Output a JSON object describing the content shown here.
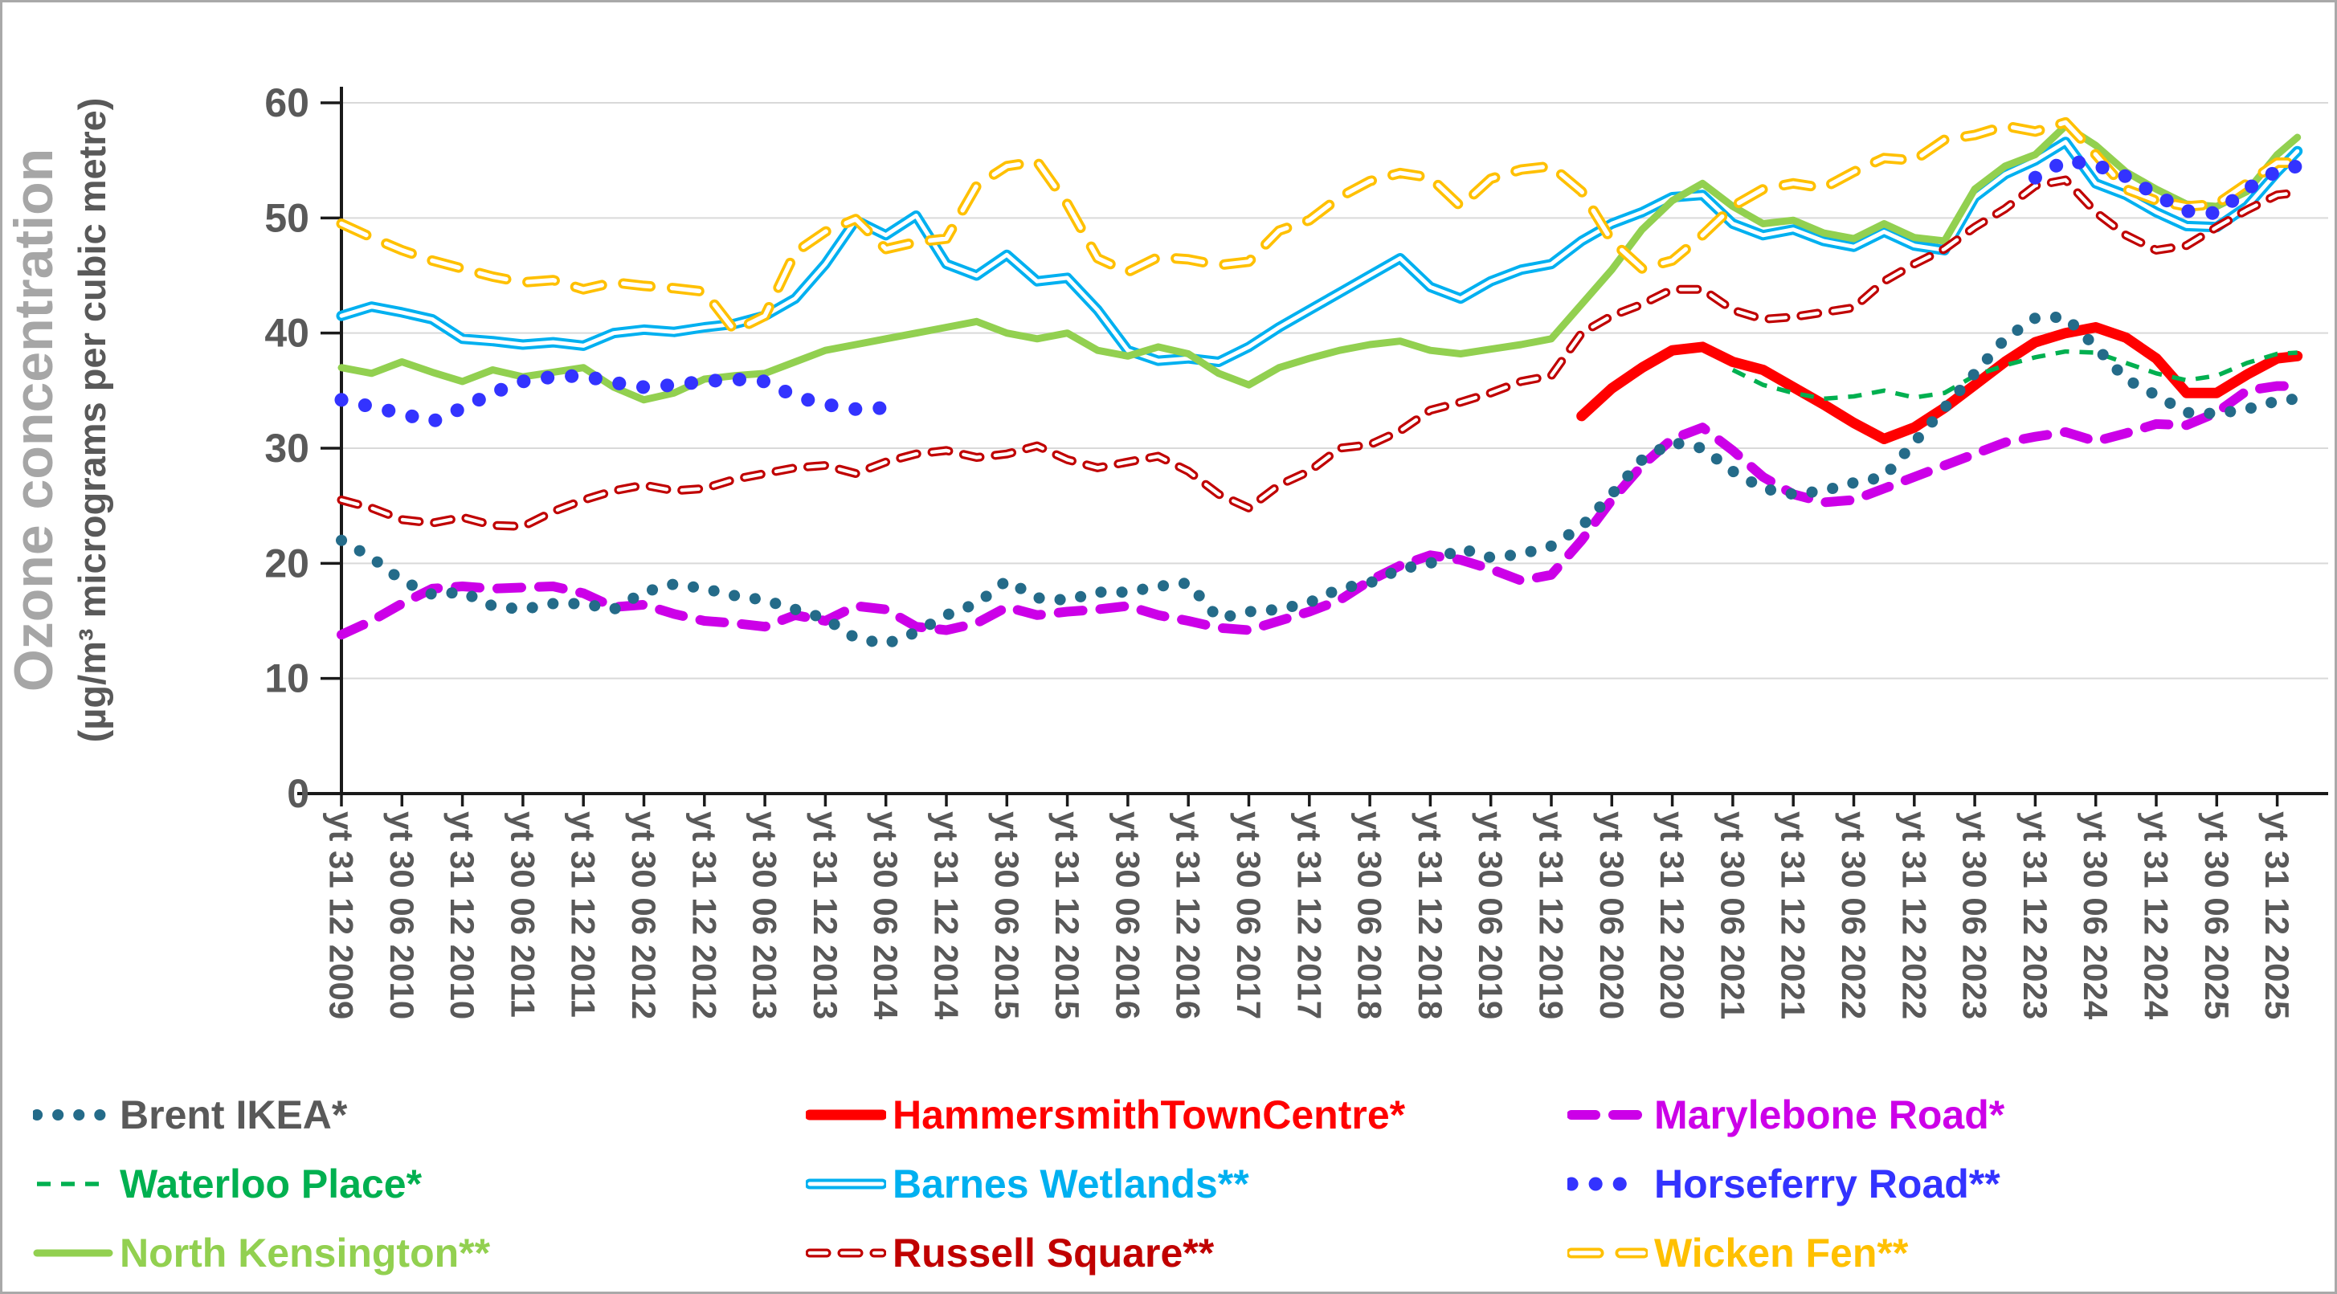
{
  "y_axis": {
    "title_line1": "Ozone concentration",
    "title_line2": "(µg/m³ micrograms per cubic metre)",
    "tick_labels": [
      "0",
      "10",
      "20",
      "30",
      "40",
      "50",
      "60"
    ],
    "range": [
      0,
      60
    ]
  },
  "x_axis": {
    "tick_labels": [
      "yt 31 12 2009",
      "yt 30 06 2010",
      "yt 31 12 2010",
      "yt 30 06 2011",
      "yt 31 12 2011",
      "yt 30 06 2012",
      "yt 31 12 2012",
      "yt 30 06 2013",
      "yt 31 12 2013",
      "yt 30 06 2014",
      "yt 31 12 2014",
      "yt 30 06 2015",
      "yt 31 12 2015",
      "yt 30 06 2016",
      "yt 31 12 2016",
      "yt 30 06 2017",
      "yt 31 12 2017",
      "yt 30 06 2018",
      "yt 31 12 2018",
      "yt 30 06 2019",
      "yt 31 12 2019",
      "yt 30 06 2020",
      "yt 31 12 2020",
      "yt 30 06 2021",
      "yt 31 12 2021",
      "yt 30 06 2022",
      "yt 31 12 2022",
      "yt 30 06 2023",
      "yt 31 12 2023",
      "yt 30 06 2024",
      "yt 31 12 2024",
      "yt 30 06 2025",
      "yt 31 12 2025"
    ]
  },
  "chart_data": {
    "type": "line",
    "title": "",
    "xlabel": "",
    "ylabel": "Ozone concentration (µg/m³ micrograms per cubic metre)",
    "ylim": [
      0,
      60
    ],
    "grid": "horizontal",
    "legend_position": "bottom",
    "x_unit": "months since Dec 2009 (labels are half-yearly 'year to' dates)",
    "x": [
      0,
      3,
      6,
      9,
      12,
      15,
      18,
      21,
      24,
      27,
      30,
      33,
      36,
      39,
      42,
      45,
      48,
      51,
      54,
      57,
      60,
      63,
      66,
      69,
      72,
      75,
      78,
      81,
      84,
      87,
      90,
      93,
      96,
      99,
      102,
      105,
      108,
      111,
      114,
      117,
      120,
      123,
      126,
      129,
      132,
      135,
      138,
      141,
      144,
      147,
      150,
      153,
      156,
      159,
      162,
      165,
      168,
      171,
      174,
      177,
      180,
      183,
      186,
      189,
      192,
      194
    ],
    "series": [
      {
        "key": "barnes-wetlands",
        "name": "Barnes Wetlands**",
        "color": "#00B0F0",
        "style": "double",
        "values": [
          41.5,
          42.3,
          41.8,
          41.2,
          39.5,
          39.3,
          39.0,
          39.2,
          38.9,
          40.0,
          40.3,
          40.1,
          40.5,
          40.8,
          41.5,
          43.0,
          46.0,
          49.8,
          48.5,
          50.2,
          46.0,
          45.0,
          46.8,
          44.5,
          44.8,
          42.0,
          38.5,
          37.6,
          37.8,
          37.5,
          38.8,
          40.5,
          42.0,
          43.5,
          45.0,
          46.5,
          44.0,
          43.0,
          44.5,
          45.5,
          46.0,
          48.0,
          49.5,
          50.5,
          51.8,
          52.0,
          49.5,
          48.5,
          49.0,
          48.0,
          47.5,
          48.8,
          47.6,
          47.2,
          51.8,
          53.8,
          55.0,
          56.6,
          53.0,
          52.0,
          50.5,
          49.3,
          49.2,
          51.0,
          54.0,
          55.8
        ]
      },
      {
        "key": "north-kensington",
        "name": "North Kensington**",
        "color": "#92D050",
        "style": "solid",
        "values": [
          37.0,
          36.5,
          37.5,
          36.6,
          35.8,
          36.8,
          36.2,
          36.6,
          37.0,
          35.3,
          34.2,
          34.8,
          36.0,
          36.3,
          36.5,
          37.5,
          38.5,
          39.0,
          39.5,
          40.0,
          40.5,
          41.0,
          40.0,
          39.5,
          40.0,
          38.5,
          38.0,
          38.8,
          38.2,
          36.5,
          35.5,
          37.0,
          37.8,
          38.5,
          39.0,
          39.3,
          38.5,
          38.2,
          38.6,
          39.0,
          39.5,
          42.5,
          45.5,
          49.0,
          51.5,
          53.0,
          51.0,
          49.5,
          49.8,
          48.7,
          48.2,
          49.5,
          48.3,
          48.0,
          52.5,
          54.5,
          55.5,
          58.0,
          56.3,
          54.0,
          52.5,
          51.2,
          51.0,
          52.3,
          55.5,
          57.0
        ]
      },
      {
        "key": "wicken-fen",
        "name": "Wicken Fen**",
        "color": "#FFC000",
        "style": "hollow-dash",
        "values": [
          49.5,
          48.3,
          47.2,
          46.3,
          45.6,
          44.9,
          44.4,
          44.6,
          43.8,
          44.4,
          44.1,
          43.9,
          43.6,
          40.2,
          41.5,
          47.0,
          48.8,
          49.9,
          47.3,
          47.9,
          48.2,
          52.8,
          54.5,
          54.9,
          51.2,
          46.5,
          45.3,
          46.6,
          46.4,
          45.9,
          46.2,
          48.9,
          49.8,
          51.8,
          53.2,
          53.9,
          53.5,
          51.0,
          53.4,
          54.2,
          54.5,
          52.3,
          48.0,
          45.6,
          46.3,
          48.5,
          51.0,
          52.5,
          53.0,
          52.6,
          54.0,
          55.2,
          55.0,
          56.8,
          57.2,
          58.0,
          57.5,
          58.3,
          55.5,
          52.5,
          51.5,
          51.0,
          51.2,
          53.0,
          54.8,
          54.8
        ]
      },
      {
        "key": "russell-square",
        "name": "Russell Square**",
        "color": "#C00000",
        "style": "hollow-dash-small",
        "values": [
          25.5,
          24.8,
          23.8,
          23.5,
          24.0,
          23.3,
          23.2,
          24.5,
          25.5,
          26.3,
          26.8,
          26.3,
          26.5,
          27.3,
          27.8,
          28.3,
          28.5,
          27.8,
          28.8,
          29.5,
          29.8,
          29.2,
          29.5,
          30.2,
          29.0,
          28.3,
          28.8,
          29.3,
          28.0,
          26.0,
          24.8,
          26.8,
          28.0,
          30.0,
          30.3,
          31.5,
          33.3,
          34.0,
          34.8,
          35.8,
          36.3,
          40.0,
          41.5,
          42.5,
          43.8,
          43.8,
          42.0,
          41.2,
          41.4,
          41.8,
          42.2,
          44.5,
          46.0,
          47.3,
          49.2,
          50.8,
          52.8,
          53.3,
          50.5,
          48.5,
          47.2,
          47.6,
          49.2,
          50.7,
          52.0,
          52.2
        ]
      },
      {
        "key": "hammersmith-town-centre",
        "name": "HammersmithTownCentre*",
        "color": "#FF0000",
        "style": "solid-thick",
        "values": [
          null,
          null,
          null,
          null,
          null,
          null,
          null,
          null,
          null,
          null,
          null,
          null,
          null,
          null,
          null,
          null,
          null,
          null,
          null,
          null,
          null,
          null,
          null,
          null,
          null,
          null,
          null,
          null,
          null,
          null,
          null,
          null,
          null,
          null,
          null,
          null,
          null,
          null,
          null,
          null,
          null,
          32.8,
          35.2,
          37.0,
          38.5,
          38.8,
          37.5,
          36.8,
          35.3,
          33.8,
          32.2,
          30.8,
          31.8,
          33.5,
          35.5,
          37.5,
          39.2,
          40.0,
          40.5,
          39.6,
          37.8,
          34.8,
          34.8,
          36.4,
          37.8,
          38.0
        ]
      },
      {
        "key": "waterloo-place",
        "name": "Waterloo Place*",
        "color": "#00B050",
        "style": "dash-small",
        "values": [
          null,
          null,
          null,
          null,
          null,
          null,
          null,
          null,
          null,
          null,
          null,
          null,
          null,
          null,
          null,
          null,
          null,
          null,
          null,
          null,
          null,
          null,
          null,
          null,
          null,
          null,
          null,
          null,
          null,
          null,
          null,
          null,
          null,
          null,
          null,
          null,
          null,
          null,
          null,
          null,
          null,
          null,
          null,
          null,
          null,
          null,
          36.8,
          35.5,
          34.8,
          34.3,
          34.5,
          35.0,
          34.4,
          34.8,
          36.3,
          37.2,
          37.9,
          38.4,
          38.3,
          37.4,
          36.5,
          35.9,
          36.3,
          37.4,
          38.2,
          38.3
        ]
      },
      {
        "key": "marylebone-road",
        "name": "Marylebone Road*",
        "color": "#CC00E8",
        "style": "dash-thick",
        "values": [
          13.8,
          15.0,
          16.5,
          17.8,
          18.0,
          17.8,
          17.9,
          18.0,
          17.4,
          16.2,
          16.4,
          15.6,
          15.0,
          14.8,
          14.5,
          15.5,
          15.0,
          16.3,
          16.0,
          14.5,
          14.2,
          14.8,
          16.2,
          15.5,
          15.8,
          16.0,
          16.3,
          15.5,
          15.0,
          14.4,
          14.2,
          15.0,
          15.8,
          16.8,
          18.5,
          19.8,
          20.7,
          20.3,
          19.5,
          18.5,
          19.0,
          22.0,
          25.5,
          28.5,
          30.8,
          31.8,
          29.8,
          27.5,
          26.0,
          25.3,
          25.5,
          26.5,
          27.5,
          28.5,
          29.5,
          30.5,
          31.0,
          31.4,
          30.6,
          31.3,
          32.1,
          32.0,
          33.1,
          35.0,
          35.4,
          35.4
        ]
      },
      {
        "key": "brent-ikea",
        "name": "Brent IKEA*",
        "color": "#246B89",
        "style": "dots",
        "values": [
          22.0,
          20.5,
          18.5,
          17.3,
          17.5,
          16.3,
          16.0,
          16.5,
          16.5,
          16.0,
          17.5,
          18.2,
          17.8,
          17.2,
          16.8,
          16.0,
          15.2,
          13.5,
          13.0,
          14.0,
          15.5,
          16.5,
          18.5,
          17.0,
          16.8,
          17.5,
          17.5,
          18.0,
          18.3,
          15.2,
          15.8,
          16.0,
          16.6,
          17.8,
          18.3,
          19.5,
          20.0,
          21.3,
          20.5,
          20.8,
          21.5,
          23.2,
          26.0,
          29.0,
          30.5,
          30.0,
          28.0,
          26.5,
          26.0,
          26.3,
          27.0,
          27.5,
          30.5,
          33.5,
          36.5,
          39.5,
          41.3,
          41.4,
          38.8,
          36.0,
          34.6,
          33.1,
          33.0,
          33.4,
          34.1,
          34.3
        ]
      },
      {
        "key": "horseferry-road",
        "name": "Horseferry Road**",
        "color": "#3333FF",
        "style": "dots-big",
        "values": [
          34.2,
          33.6,
          33.0,
          32.3,
          33.5,
          34.8,
          35.8,
          36.2,
          36.3,
          35.7,
          35.3,
          35.5,
          35.8,
          36.0,
          35.8,
          34.5,
          33.8,
          33.4,
          33.5,
          null,
          null,
          null,
          null,
          null,
          null,
          null,
          null,
          null,
          null,
          null,
          null,
          null,
          null,
          null,
          null,
          null,
          null,
          null,
          null,
          null,
          null,
          null,
          null,
          null,
          null,
          null,
          null,
          null,
          null,
          null,
          null,
          null,
          null,
          null,
          null,
          null,
          53.5,
          55.0,
          54.6,
          53.6,
          52.0,
          50.6,
          50.4,
          52.5,
          54.1,
          54.5
        ]
      }
    ]
  },
  "legend": {
    "rows": [
      [
        "brent-ikea",
        "hammersmith-town-centre",
        "marylebone-road"
      ],
      [
        "waterloo-place",
        "barnes-wetlands",
        "horseferry-road"
      ],
      [
        "north-kensington",
        "russell-square",
        "wicken-fen"
      ]
    ],
    "labels": {
      "brent-ikea": "Brent IKEA*",
      "hammersmith-town-centre": "HammersmithTownCentre*",
      "marylebone-road": "Marylebone Road*",
      "waterloo-place": "Waterloo Place*",
      "barnes-wetlands": "Barnes Wetlands**",
      "horseferry-road": "Horseferry Road**",
      "north-kensington": "North Kensington**",
      "russell-square": "Russell Square**",
      "wicken-fen": "Wicken Fen**"
    },
    "label_colors": {
      "brent-ikea": "#595959",
      "hammersmith-town-centre": "#FF0000",
      "marylebone-road": "#CC00E8",
      "waterloo-place": "#00B050",
      "barnes-wetlands": "#00B0F0",
      "horseferry-road": "#3333FF",
      "north-kensington": "#92D050",
      "russell-square": "#C00000",
      "wicken-fen": "#FFC000"
    }
  },
  "colors": {
    "axis_text": "#595959",
    "axis_line": "#1a1a1a",
    "gridline": "#D9D9D9",
    "title_light": "#A6A6A6",
    "background": "#FFFFFF"
  }
}
